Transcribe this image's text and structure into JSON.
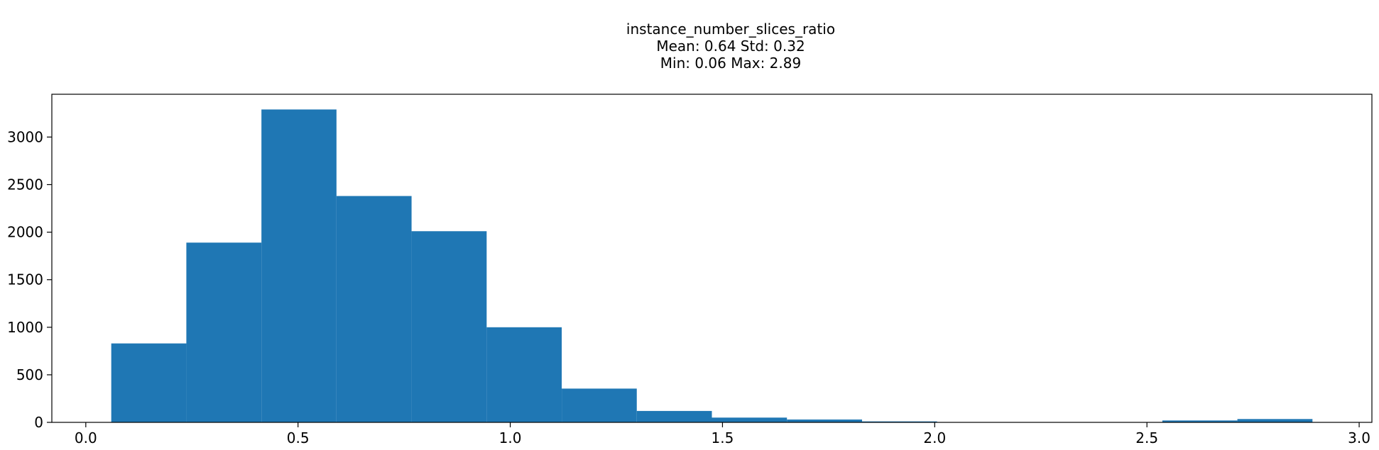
{
  "chart_data": {
    "type": "bar",
    "subtype": "histogram",
    "title": "instance_number_slices_ratio",
    "subtitle_lines": [
      "Mean: 0.64 Std: 0.32",
      "Min: 0.06 Max: 2.89"
    ],
    "xlabel": "",
    "ylabel": "",
    "xlim": [
      -0.08,
      3.03
    ],
    "ylim": [
      0,
      3450
    ],
    "x_ticks": [
      0.0,
      0.5,
      1.0,
      1.5,
      2.0,
      2.5,
      3.0
    ],
    "x_tick_labels": [
      "0.0",
      "0.5",
      "1.0",
      "1.5",
      "2.0",
      "2.5",
      "3.0"
    ],
    "y_ticks": [
      0,
      500,
      1000,
      1500,
      2000,
      2500,
      3000
    ],
    "y_tick_labels": [
      "0",
      "500",
      "1000",
      "1500",
      "2000",
      "2500",
      "3000"
    ],
    "bin_edges": [
      0.06,
      0.2369,
      0.4138,
      0.5906,
      0.7675,
      0.9444,
      1.1213,
      1.2981,
      1.475,
      1.6519,
      1.8288,
      2.0056,
      2.1825,
      2.3594,
      2.5363,
      2.7131,
      2.89
    ],
    "counts": [
      830,
      1890,
      3290,
      2380,
      2010,
      1000,
      355,
      120,
      50,
      30,
      10,
      0,
      0,
      0,
      20,
      35
    ],
    "bar_color": "#1f77b4",
    "grid": false,
    "legend": "none"
  }
}
